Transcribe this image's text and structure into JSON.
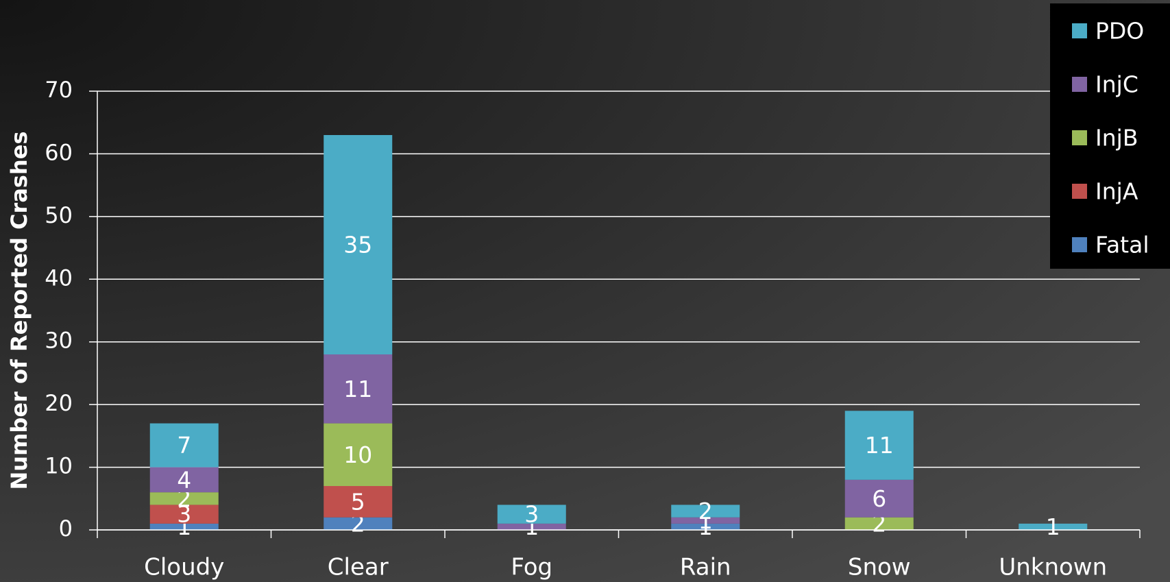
{
  "chart_data": {
    "type": "stacked_bar",
    "y_label": "Number of Reported Crashes",
    "categories": [
      "Cloudy",
      "Clear",
      "Fog",
      "Rain",
      "Snow",
      "Unknown"
    ],
    "series": [
      {
        "name": "Fatal",
        "color": "#4f81bd",
        "values": [
          1,
          2,
          null,
          1,
          null,
          null
        ]
      },
      {
        "name": "InjA",
        "color": "#c0504d",
        "values": [
          3,
          5,
          null,
          null,
          null,
          null
        ]
      },
      {
        "name": "InjB",
        "color": "#9bbb59",
        "values": [
          2,
          10,
          null,
          null,
          2,
          null
        ]
      },
      {
        "name": "InjC",
        "color": "#8064a2",
        "values": [
          4,
          11,
          1,
          1,
          6,
          null
        ]
      },
      {
        "name": "PDO",
        "color": "#4bacc6",
        "values": [
          7,
          35,
          3,
          2,
          11,
          1
        ]
      }
    ],
    "ylim": [
      0,
      70
    ],
    "yticks": [
      0,
      10,
      20,
      30,
      40,
      50,
      60,
      70
    ],
    "grid": true,
    "legend": "top-right"
  }
}
